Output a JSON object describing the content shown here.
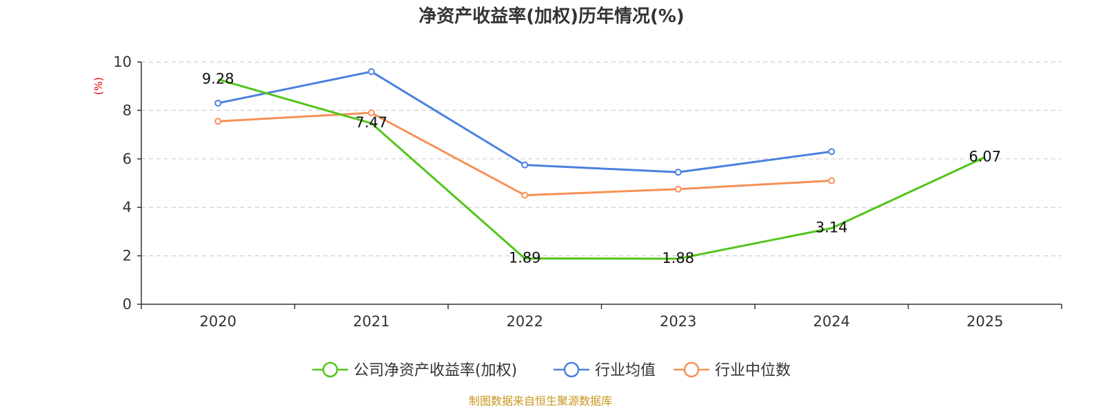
{
  "chart_data": {
    "type": "line",
    "title": "净资产收益率(加权)历年情况(%)",
    "ylabel": "(%)",
    "xlabel": "",
    "categories": [
      "2020",
      "2021",
      "2022",
      "2023",
      "2024",
      "2025"
    ],
    "ylim": [
      0,
      10
    ],
    "yticks": [
      0,
      2,
      4,
      6,
      8,
      10
    ],
    "grid": true,
    "legend_position": "bottom",
    "series": [
      {
        "name": "公司净资产收益率(加权)",
        "color": "#52c41a",
        "values": [
          9.28,
          7.47,
          1.89,
          1.88,
          3.14,
          6.07
        ],
        "labels": [
          "9.28",
          "7.47",
          "1.89",
          "1.88",
          "3.14",
          "6.07"
        ],
        "show_markers": false
      },
      {
        "name": "行业均值",
        "color": "#4a80e0",
        "values": [
          8.3,
          9.6,
          5.75,
          5.45,
          6.3,
          null
        ],
        "show_markers": true
      },
      {
        "name": "行业中位数",
        "color": "#f79056",
        "values": [
          7.55,
          7.9,
          4.5,
          4.75,
          5.1,
          null
        ],
        "show_markers": true
      }
    ],
    "source": "制图数据来自恒生聚源数据库"
  }
}
